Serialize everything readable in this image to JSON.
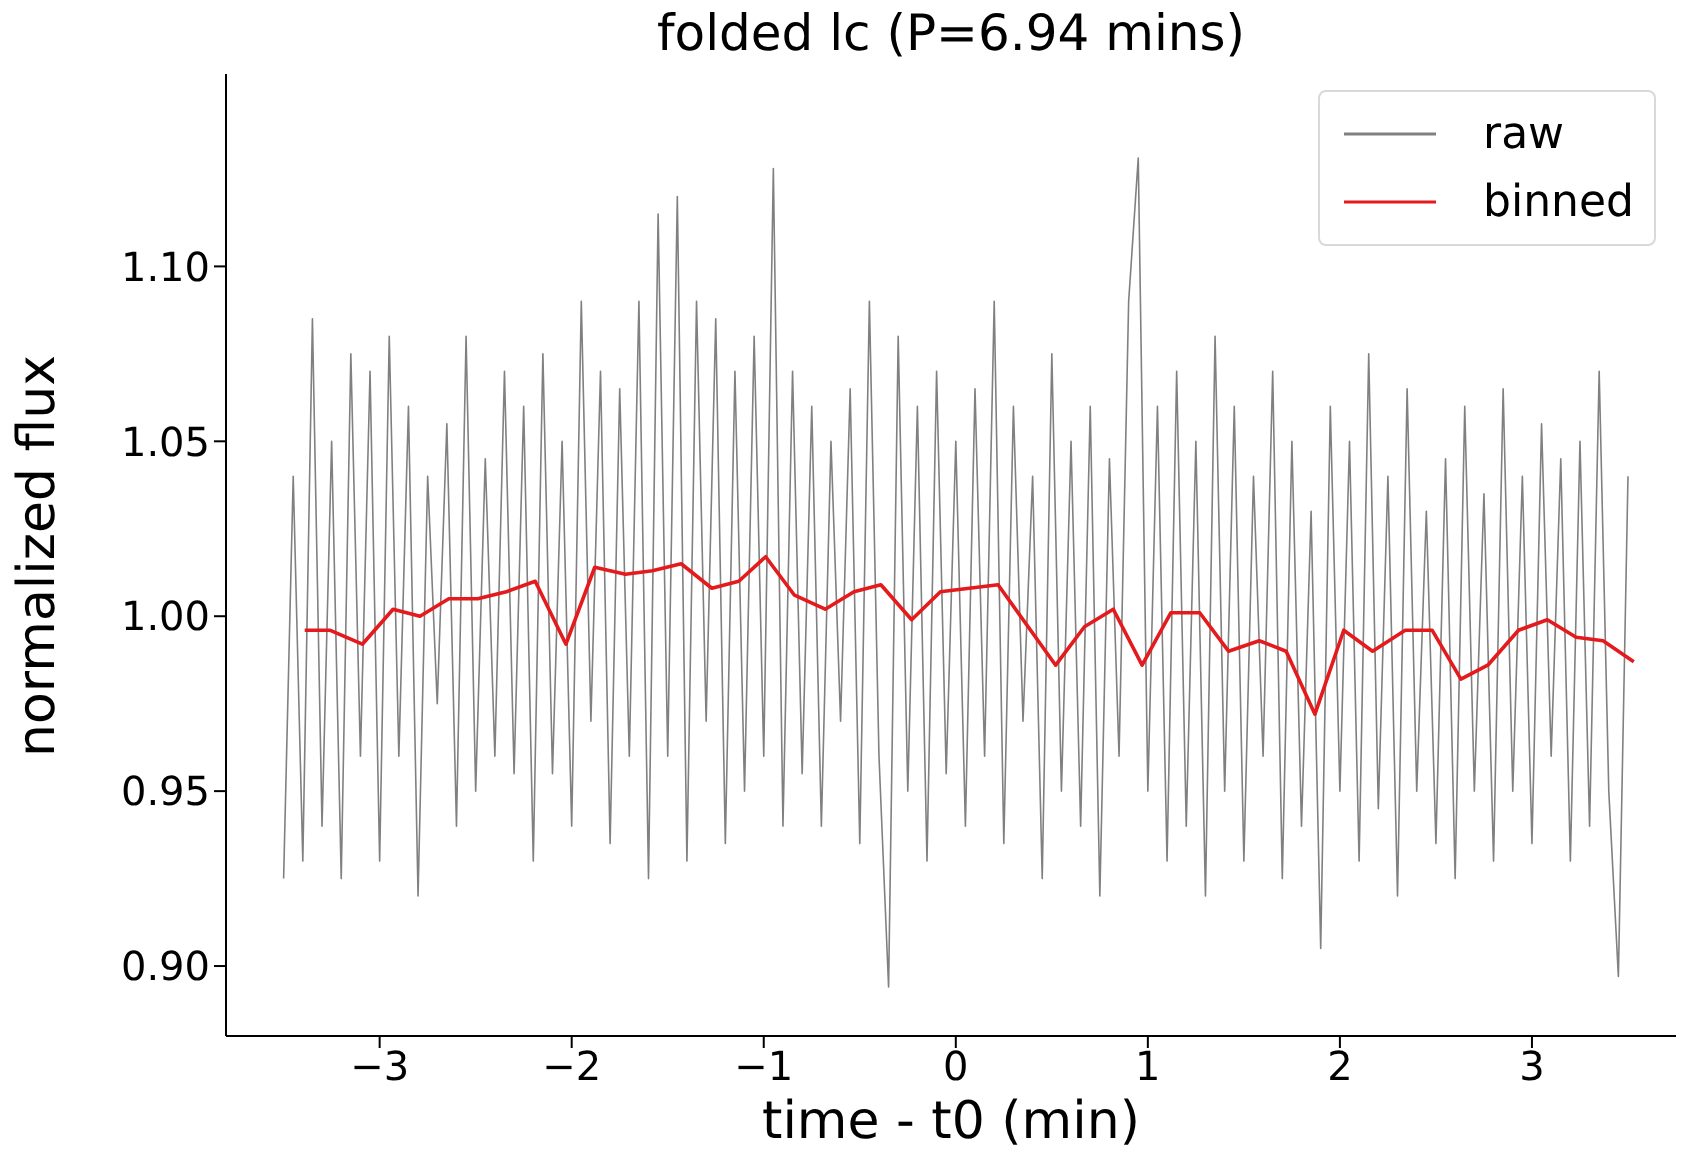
{
  "chart_data": {
    "type": "line",
    "title": "folded lc (P=6.94 mins)",
    "xlabel": "time - t0 (min)",
    "ylabel": "normalized flux",
    "xlim": [
      -3.8,
      3.75
    ],
    "ylim": [
      0.88,
      1.155
    ],
    "xticks": [
      {
        "value": -3,
        "label": "−3"
      },
      {
        "value": -2,
        "label": "−2"
      },
      {
        "value": -1,
        "label": "−1"
      },
      0,
      1,
      2,
      3
    ],
    "yticks": [
      {
        "value": 0.9,
        "label": "0.90"
      },
      0.95,
      {
        "value": 1.0,
        "label": "1.00"
      },
      1.05,
      {
        "value": 1.1,
        "label": "1.10"
      }
    ],
    "legend": "top right",
    "series": [
      {
        "name": "raw",
        "color": "#808080",
        "x": [
          -3.5,
          -3.45,
          -3.4,
          -3.35,
          -3.3,
          -3.25,
          -3.2,
          -3.15,
          -3.1,
          -3.05,
          -3,
          -2.95,
          -2.9,
          -2.85,
          -2.8,
          -2.75,
          -2.7,
          -2.65,
          -2.6,
          -2.55,
          -2.5,
          -2.45,
          -2.4,
          -2.35,
          -2.3,
          -2.25,
          -2.2,
          -2.15,
          -2.1,
          -2.05,
          -2,
          -1.95,
          -1.9,
          -1.85,
          -1.8,
          -1.75,
          -1.7,
          -1.65,
          -1.6,
          -1.55,
          -1.5,
          -1.45,
          -1.4,
          -1.35,
          -1.3,
          -1.25,
          -1.2,
          -1.15,
          -1.1,
          -1.05,
          -1,
          -0.95,
          -0.9,
          -0.85,
          -0.8,
          -0.75,
          -0.7,
          -0.65,
          -0.6,
          -0.55,
          -0.5,
          -0.45,
          -0.4,
          -0.35,
          -0.3,
          -0.25,
          -0.2,
          -0.15,
          -0.1,
          -0.05,
          0,
          0.05,
          0.1,
          0.15,
          0.2,
          0.25,
          0.3,
          0.35,
          0.4,
          0.45,
          0.5,
          0.55,
          0.6,
          0.65,
          0.7,
          0.75,
          0.8,
          0.85,
          0.9,
          0.95,
          1,
          1.05,
          1.1,
          1.15,
          1.2,
          1.25,
          1.3,
          1.35,
          1.4,
          1.45,
          1.5,
          1.55,
          1.6,
          1.65,
          1.7,
          1.75,
          1.8,
          1.85,
          1.9,
          1.95,
          2,
          2.05,
          2.1,
          2.15,
          2.2,
          2.25,
          2.3,
          2.35,
          2.4,
          2.45,
          2.5,
          2.55,
          2.6,
          2.65,
          2.7,
          2.75,
          2.8,
          2.85,
          2.9,
          2.95,
          3,
          3.05,
          3.1,
          3.15,
          3.2,
          3.25,
          3.3,
          3.35,
          3.4,
          3.45,
          3.5
        ],
        "values": [
          0.925,
          1.04,
          0.93,
          1.085,
          0.94,
          1.05,
          0.925,
          1.075,
          0.96,
          1.07,
          0.93,
          1.08,
          0.96,
          1.06,
          0.92,
          1.04,
          0.975,
          1.055,
          0.94,
          1.08,
          0.95,
          1.045,
          0.96,
          1.07,
          0.955,
          1.06,
          0.93,
          1.075,
          0.955,
          1.05,
          0.94,
          1.09,
          0.97,
          1.07,
          0.935,
          1.065,
          0.96,
          1.09,
          0.925,
          1.115,
          0.96,
          1.12,
          0.93,
          1.09,
          0.97,
          1.085,
          0.935,
          1.07,
          0.95,
          1.08,
          0.96,
          1.128,
          0.94,
          1.07,
          0.955,
          1.06,
          0.94,
          1.05,
          0.97,
          1.065,
          0.935,
          1.09,
          0.96,
          0.894,
          1.08,
          0.95,
          1.06,
          0.93,
          1.07,
          0.955,
          1.05,
          0.94,
          1.065,
          0.96,
          1.09,
          0.935,
          1.06,
          0.97,
          1.04,
          0.925,
          1.075,
          0.95,
          1.05,
          0.94,
          1.06,
          0.92,
          1.045,
          0.96,
          1.09,
          1.131,
          0.95,
          1.06,
          0.93,
          1.07,
          0.94,
          1.05,
          0.92,
          1.08,
          0.95,
          1.06,
          0.93,
          1.04,
          0.96,
          1.07,
          0.925,
          1.05,
          0.94,
          1.03,
          0.905,
          1.06,
          0.95,
          1.05,
          0.93,
          1.075,
          0.945,
          1.04,
          0.92,
          1.065,
          0.95,
          1.03,
          0.935,
          1.045,
          0.925,
          1.06,
          0.95,
          1.035,
          0.93,
          1.065,
          0.95,
          1.04,
          0.935,
          1.055,
          0.96,
          1.045,
          0.93,
          1.05,
          0.94,
          1.07,
          0.95,
          0.897,
          1.04
        ]
      },
      {
        "name": "binned",
        "color": "#e41a1c",
        "x": [
          -3.39,
          -3.26,
          -3.09,
          -2.93,
          -2.79,
          -2.64,
          -2.49,
          -2.34,
          -2.19,
          -2.03,
          -1.88,
          -1.72,
          -1.58,
          -1.43,
          -1.27,
          -1.13,
          -0.99,
          -0.84,
          -0.68,
          -0.53,
          -0.39,
          -0.23,
          -0.08,
          0.07,
          0.22,
          0.52,
          0.67,
          0.82,
          0.97,
          1.12,
          1.27,
          1.42,
          1.58,
          1.72,
          1.87,
          2.02,
          2.17,
          2.34,
          2.48,
          2.63,
          2.77,
          2.93,
          3.08,
          3.23,
          3.37,
          3.53
        ],
        "values": [
          0.996,
          0.996,
          0.992,
          1.002,
          1.0,
          1.005,
          1.005,
          1.007,
          1.01,
          0.992,
          1.014,
          1.012,
          1.013,
          1.015,
          1.008,
          1.01,
          1.017,
          1.006,
          1.002,
          1.007,
          1.009,
          0.999,
          1.007,
          1.008,
          1.009,
          0.986,
          0.997,
          1.002,
          0.986,
          1.001,
          1.001,
          0.99,
          0.993,
          0.99,
          0.972,
          0.996,
          0.99,
          0.996,
          0.996,
          0.982,
          0.986,
          0.996,
          0.999,
          0.994,
          0.993,
          0.987
        ]
      }
    ]
  }
}
